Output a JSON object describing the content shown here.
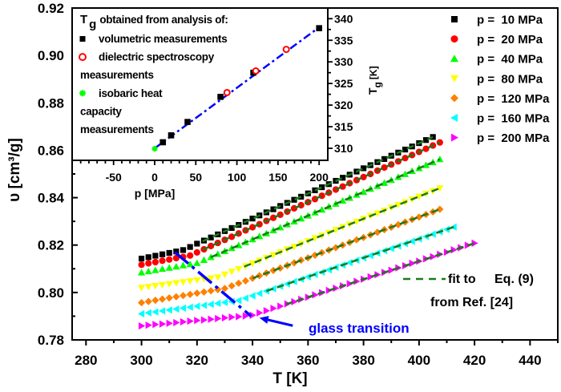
{
  "chart_data": [
    {
      "type": "scatter",
      "xlabel": "T [K]",
      "ylabel": "υ [cm³/g]",
      "xlim": [
        275,
        450
      ],
      "ylim": [
        0.78,
        0.92
      ],
      "xticks": [
        280,
        300,
        320,
        340,
        360,
        380,
        400,
        420,
        440
      ],
      "yticks": [
        "0.78",
        "0.80",
        "0.82",
        "0.84",
        "0.86",
        "0.88",
        "0.90",
        "0.92"
      ],
      "grid": false,
      "legend_position": "top-right",
      "series": [
        {
          "name": "p =  10 MPa",
          "marker": "square",
          "color": "#000000",
          "x": [
            300,
            302.5,
            305,
            307.5,
            310,
            312.5,
            315,
            317.5,
            320,
            322.5,
            325,
            327.5,
            330,
            332.5,
            335,
            337.5,
            340,
            342.5,
            345,
            347.5,
            350,
            352.5,
            355,
            357.5,
            360,
            362.5,
            365,
            367.5,
            370,
            372.5,
            375,
            377.5,
            380,
            382.5,
            385,
            387.5,
            390,
            392.5,
            395,
            397.5,
            400,
            402.5,
            405
          ],
          "y": [
            0.8143,
            0.8149,
            0.8155,
            0.8161,
            0.8167,
            0.8173,
            0.8179,
            0.8192,
            0.8206,
            0.8219,
            0.8232,
            0.8245,
            0.8259,
            0.8272,
            0.8285,
            0.8298,
            0.8312,
            0.8325,
            0.8338,
            0.8351,
            0.8365,
            0.8378,
            0.8391,
            0.8404,
            0.8418,
            0.8431,
            0.8444,
            0.8457,
            0.8471,
            0.8484,
            0.8497,
            0.851,
            0.8524,
            0.8537,
            0.855,
            0.8563,
            0.8577,
            0.859,
            0.8603,
            0.8616,
            0.863,
            0.8643,
            0.8656
          ],
          "fit": [
            [
              322,
              0.8216
            ],
            [
              405,
              0.8656
            ]
          ]
        },
        {
          "name": "p =  20 MPa",
          "marker": "circle",
          "color": "#ff0000",
          "x": [
            300,
            302.5,
            305,
            307.5,
            310,
            312.5,
            315,
            317.5,
            320,
            322.5,
            325,
            327.5,
            330,
            332.5,
            335,
            337.5,
            340,
            342.5,
            345,
            347.5,
            350,
            352.5,
            355,
            357.5,
            360,
            362.5,
            365,
            367.5,
            370,
            372.5,
            375,
            377.5,
            380,
            382.5,
            385,
            387.5,
            390,
            392.5,
            395,
            397.5,
            400,
            402.5,
            405,
            407.5
          ],
          "y": [
            0.8117,
            0.8123,
            0.8128,
            0.8134,
            0.8139,
            0.8145,
            0.815,
            0.8156,
            0.8169,
            0.8182,
            0.8196,
            0.8209,
            0.8222,
            0.8235,
            0.8249,
            0.8262,
            0.8275,
            0.8288,
            0.8302,
            0.8315,
            0.8328,
            0.8341,
            0.8355,
            0.8368,
            0.8381,
            0.8394,
            0.8408,
            0.8421,
            0.8434,
            0.8447,
            0.8461,
            0.8474,
            0.8487,
            0.85,
            0.8514,
            0.8527,
            0.854,
            0.8553,
            0.8567,
            0.858,
            0.8593,
            0.8606,
            0.862,
            0.8633
          ],
          "fit": [
            [
              322,
              0.818
            ],
            [
              407.5,
              0.8633
            ]
          ]
        },
        {
          "name": "p =  40 MPa",
          "marker": "triangle-up",
          "color": "#00ff00",
          "x": [
            300,
            302.5,
            305,
            307.5,
            310,
            312.5,
            315,
            317.5,
            320,
            322.5,
            325,
            327.5,
            330,
            332.5,
            335,
            337.5,
            340,
            342.5,
            345,
            347.5,
            350,
            352.5,
            355,
            357.5,
            360,
            362.5,
            365,
            367.5,
            370,
            372.5,
            375,
            377.5,
            380,
            382.5,
            385,
            387.5,
            390,
            392.5,
            395,
            397.5,
            400,
            402.5,
            405,
            407.5
          ],
          "y": [
            0.8084,
            0.8089,
            0.8094,
            0.8099,
            0.8104,
            0.8109,
            0.8114,
            0.8119,
            0.8124,
            0.8137,
            0.8149,
            0.8162,
            0.8174,
            0.8187,
            0.8199,
            0.8212,
            0.8224,
            0.8237,
            0.8249,
            0.8262,
            0.8274,
            0.8287,
            0.8299,
            0.8312,
            0.8324,
            0.8337,
            0.8349,
            0.8362,
            0.8374,
            0.8387,
            0.8399,
            0.8412,
            0.8424,
            0.8437,
            0.8449,
            0.8462,
            0.8474,
            0.8487,
            0.8499,
            0.8512,
            0.8524,
            0.8537,
            0.8549,
            0.8562
          ],
          "fit": [
            [
              325,
              0.8149
            ],
            [
              407.5,
              0.8562
            ]
          ]
        },
        {
          "name": "p =  80 MPa",
          "marker": "triangle-down",
          "color": "#ffff00",
          "x": [
            300,
            302.5,
            305,
            307.5,
            310,
            312.5,
            315,
            317.5,
            320,
            322.5,
            325,
            327.5,
            330,
            332.5,
            335,
            337.5,
            340,
            342.5,
            345,
            347.5,
            350,
            352.5,
            355,
            357.5,
            360,
            362.5,
            365,
            367.5,
            370,
            372.5,
            375,
            377.5,
            380,
            382.5,
            385,
            387.5,
            390,
            392.5,
            395,
            397.5,
            400,
            402.5,
            405,
            407.5
          ],
          "y": [
            0.802,
            0.8024,
            0.8028,
            0.8032,
            0.8036,
            0.804,
            0.8044,
            0.8048,
            0.8052,
            0.8056,
            0.806,
            0.8064,
            0.8076,
            0.8088,
            0.8099,
            0.8111,
            0.8123,
            0.8135,
            0.8146,
            0.8158,
            0.817,
            0.8182,
            0.8193,
            0.8205,
            0.8217,
            0.8229,
            0.824,
            0.8252,
            0.8264,
            0.8276,
            0.8287,
            0.8299,
            0.8311,
            0.8323,
            0.8334,
            0.8346,
            0.8358,
            0.837,
            0.8381,
            0.8393,
            0.8405,
            0.8417,
            0.8428,
            0.844
          ],
          "fit": [
            [
              337,
              0.8109
            ],
            [
              407.5,
              0.844
            ]
          ]
        },
        {
          "name": "p =  120 MPa",
          "marker": "diamond",
          "color": "#ff8000",
          "x": [
            300,
            302.5,
            305,
            307.5,
            310,
            312.5,
            315,
            317.5,
            320,
            322.5,
            325,
            327.5,
            330,
            332.5,
            335,
            337.5,
            340,
            342.5,
            345,
            347.5,
            350,
            352.5,
            355,
            357.5,
            360,
            362.5,
            365,
            367.5,
            370,
            372.5,
            375,
            377.5,
            380,
            382.5,
            385,
            387.5,
            390,
            392.5,
            395,
            397.5,
            400,
            402.5,
            405,
            407.5
          ],
          "y": [
            0.7957,
            0.7962,
            0.7967,
            0.7972,
            0.7977,
            0.7982,
            0.7987,
            0.7992,
            0.7997,
            0.8002,
            0.8007,
            0.8012,
            0.8017,
            0.8028,
            0.8039,
            0.8049,
            0.806,
            0.8071,
            0.8082,
            0.8093,
            0.8103,
            0.8114,
            0.8125,
            0.8136,
            0.8146,
            0.8157,
            0.8168,
            0.8179,
            0.8189,
            0.82,
            0.8211,
            0.8222,
            0.8232,
            0.8243,
            0.8254,
            0.8265,
            0.8275,
            0.8286,
            0.8297,
            0.8308,
            0.8318,
            0.8329,
            0.834,
            0.8351
          ],
          "fit": [
            [
              340,
              0.806
            ],
            [
              407.5,
              0.8351
            ]
          ]
        },
        {
          "name": "p =  160 MPa",
          "marker": "triangle-left",
          "color": "#00ffff",
          "x": [
            300,
            302.5,
            305,
            307.5,
            310,
            312.5,
            315,
            317.5,
            320,
            322.5,
            325,
            327.5,
            330,
            332.5,
            335,
            337.5,
            340,
            342.5,
            345,
            347.5,
            350,
            352.5,
            355,
            357.5,
            360,
            362.5,
            365,
            367.5,
            370,
            372.5,
            375,
            377.5,
            380,
            382.5,
            385,
            387.5,
            390,
            392.5,
            395,
            397.5,
            400,
            402.5,
            405,
            407.5,
            410,
            412.5
          ],
          "y": [
            0.791,
            0.7914,
            0.7918,
            0.7922,
            0.7926,
            0.793,
            0.7934,
            0.7938,
            0.7942,
            0.7946,
            0.795,
            0.7954,
            0.7958,
            0.7962,
            0.7966,
            0.7976,
            0.7986,
            0.7996,
            0.8006,
            0.8016,
            0.8026,
            0.8036,
            0.8046,
            0.8056,
            0.8066,
            0.8076,
            0.8086,
            0.8096,
            0.8106,
            0.8116,
            0.8126,
            0.8136,
            0.8146,
            0.8156,
            0.8166,
            0.8176,
            0.8186,
            0.8196,
            0.8206,
            0.8216,
            0.8226,
            0.8236,
            0.8246,
            0.8256,
            0.8266,
            0.8276
          ],
          "fit": [
            [
              345,
              0.8006
            ],
            [
              412.5,
              0.8276
            ]
          ]
        },
        {
          "name": "p =  200 MPa",
          "marker": "triangle-right",
          "color": "#ff00ff",
          "x": [
            300,
            302.5,
            305,
            307.5,
            310,
            312.5,
            315,
            317.5,
            320,
            322.5,
            325,
            327.5,
            330,
            332.5,
            335,
            337.5,
            340,
            342.5,
            345,
            347.5,
            350,
            352.5,
            355,
            357.5,
            360,
            362.5,
            365,
            367.5,
            370,
            372.5,
            375,
            377.5,
            380,
            382.5,
            385,
            387.5,
            390,
            392.5,
            395,
            397.5,
            400,
            402.5,
            405,
            407.5,
            410,
            412.5,
            415,
            417.5,
            420
          ],
          "y": [
            0.7859,
            0.7862,
            0.7865,
            0.7867,
            0.787,
            0.7873,
            0.7876,
            0.7879,
            0.7882,
            0.7884,
            0.7887,
            0.789,
            0.7893,
            0.7896,
            0.7898,
            0.7901,
            0.7904,
            0.7914,
            0.7923,
            0.7933,
            0.7942,
            0.7952,
            0.7961,
            0.7971,
            0.798,
            0.799,
            0.7999,
            0.8009,
            0.8018,
            0.8028,
            0.8037,
            0.8047,
            0.8056,
            0.8066,
            0.8075,
            0.8085,
            0.8094,
            0.8104,
            0.8113,
            0.8123,
            0.8132,
            0.8142,
            0.8151,
            0.8161,
            0.817,
            0.818,
            0.8189,
            0.8199,
            0.8208
          ],
          "fit": [
            [
              352,
              0.795
            ],
            [
              420,
              0.8208
            ]
          ]
        }
      ],
      "fit_color": "#1a7a1a",
      "glass_transition_line": [
        [
          312,
          0.817
        ],
        [
          339.5,
          0.79
        ]
      ],
      "glass_transition_arrow": [
        [
          354.5,
          0.786
        ],
        [
          342.5,
          0.7893
        ]
      ],
      "annotation_color": "#0000ff",
      "annotations": {
        "glass_transition": "glass transition",
        "fit_to": "fit to",
        "equation": "Eq. (9)",
        "reference": "from Ref. [24]"
      }
    },
    {
      "type": "scatter",
      "title_symbol": "T",
      "title_subscript": "g",
      "title_rest": "obtained from analysis of:",
      "xlabel": "p [MPa]",
      "ylabel_symbol": "T",
      "ylabel_subscript": "g",
      "ylabel_rest": "[K]",
      "xlim": [
        -100,
        210
      ],
      "ylim": [
        307.2,
        342.5
      ],
      "xticks": [
        -50,
        0,
        50,
        100,
        150,
        200
      ],
      "yticks": [
        310,
        315,
        320,
        325,
        330,
        335,
        340
      ],
      "y_axis_side": "right",
      "legend": [
        {
          "marker": "square",
          "color": "#000000",
          "lines": [
            "volumetric measurements"
          ]
        },
        {
          "marker": "open-circle",
          "color": "#ff0000",
          "lines": [
            "dielectric spectroscopy",
            "measurements"
          ]
        },
        {
          "marker": "star",
          "color": "#00ff00",
          "lines": [
            "isobaric heat",
            "capacity",
            "measurements"
          ]
        }
      ],
      "series": [
        {
          "marker": "square",
          "color": "#000000",
          "x": [
            10,
            20,
            40,
            80,
            120,
            200
          ],
          "y": [
            311.4,
            313.0,
            316.1,
            321.9,
            327.5,
            337.8
          ]
        },
        {
          "marker": "open-circle",
          "color": "#ff0000",
          "x": [
            88,
            123,
            160
          ],
          "y": [
            322.9,
            327.9,
            332.9
          ]
        },
        {
          "marker": "star",
          "color": "#00ff00",
          "x": [
            0
          ],
          "y": [
            309.9
          ]
        }
      ],
      "fit_line": {
        "color": "#0000ff",
        "points": [
          [
            0,
            310.0
          ],
          [
            200,
            338.0
          ]
        ]
      }
    }
  ]
}
